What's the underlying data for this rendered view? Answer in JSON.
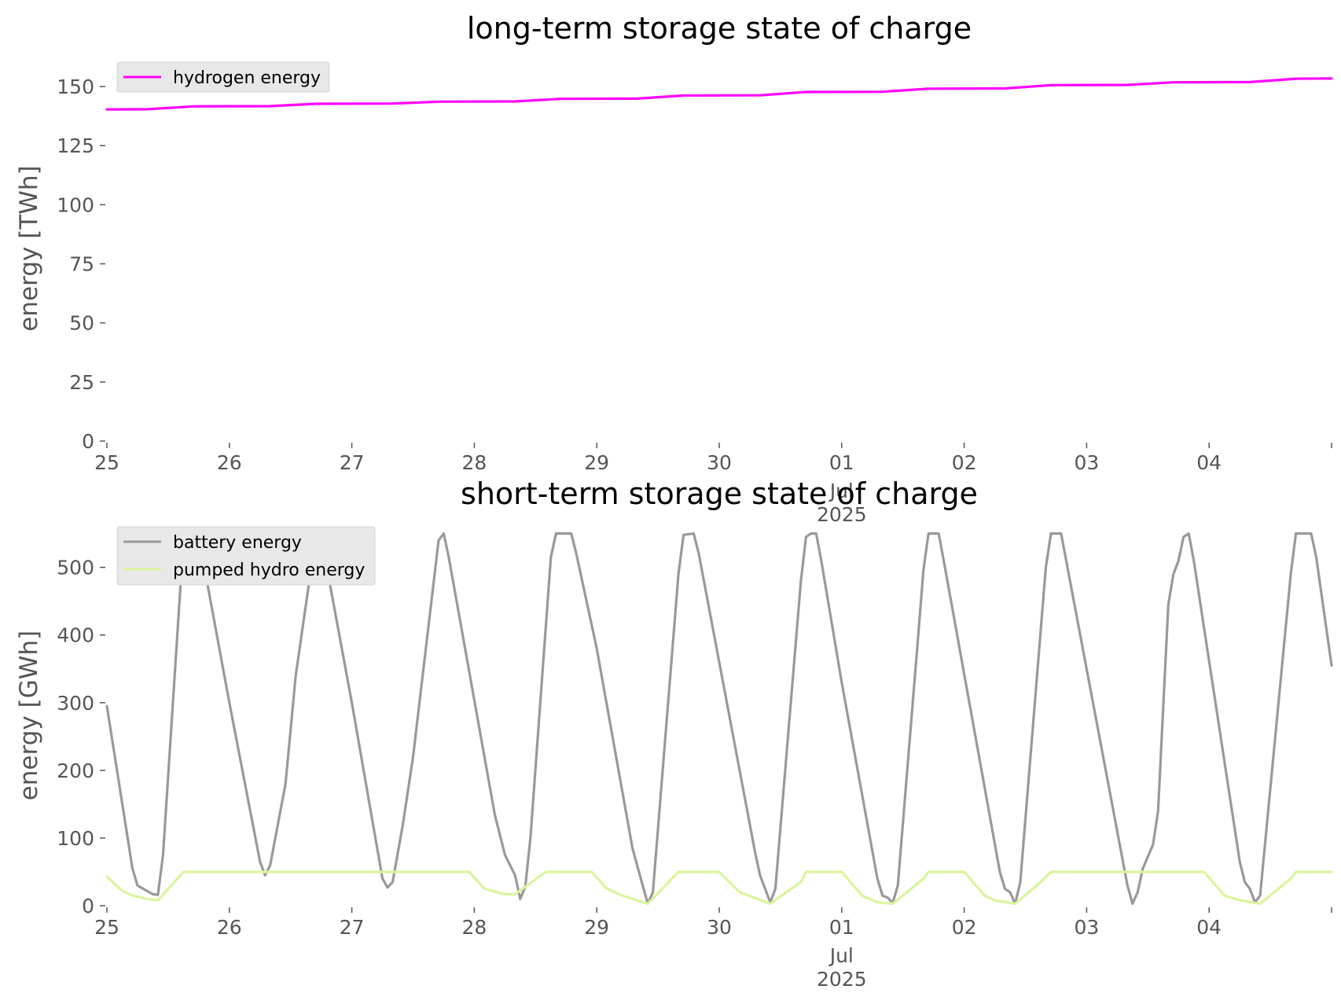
{
  "chart_data": [
    {
      "type": "line",
      "title": "long-term storage state of charge",
      "xlabel": "",
      "ylabel": "energy [TWh]",
      "xlim": [
        "2025-06-25",
        "2025-07-05"
      ],
      "ylim": [
        0,
        160
      ],
      "yticks": [
        0,
        25,
        50,
        75,
        100,
        125,
        150
      ],
      "xtick_labels": [
        {
          "date": "2025-06-25",
          "label": "25"
        },
        {
          "date": "2025-06-26",
          "label": "26"
        },
        {
          "date": "2025-06-27",
          "label": "27"
        },
        {
          "date": "2025-06-28",
          "label": "28"
        },
        {
          "date": "2025-06-29",
          "label": "29"
        },
        {
          "date": "2025-06-30",
          "label": "30"
        },
        {
          "date": "2025-07-01",
          "label": "01"
        },
        {
          "date": "2025-07-02",
          "label": "02"
        },
        {
          "date": "2025-07-03",
          "label": "03"
        },
        {
          "date": "2025-07-04",
          "label": "04"
        }
      ],
      "xtick_sub": {
        "date": "2025-07-01",
        "month": "Jul",
        "year": "2025"
      },
      "grid": false,
      "legend_position": "upper-left",
      "series": [
        {
          "name": "hydrogen energy",
          "color": "#ff00ff",
          "points": [
            [
              "2025-06-25 00:00",
              140.3
            ],
            [
              "2025-06-25 08:00",
              140.4
            ],
            [
              "2025-06-25 17:00",
              141.6
            ],
            [
              "2025-06-26 08:00",
              141.7
            ],
            [
              "2025-06-26 17:00",
              142.7
            ],
            [
              "2025-06-27 08:00",
              142.8
            ],
            [
              "2025-06-27 17:00",
              143.6
            ],
            [
              "2025-06-28 08:00",
              143.7
            ],
            [
              "2025-06-28 17:00",
              144.8
            ],
            [
              "2025-06-29 08:00",
              144.9
            ],
            [
              "2025-06-29 17:00",
              146.2
            ],
            [
              "2025-06-30 08:00",
              146.3
            ],
            [
              "2025-06-30 17:00",
              147.7
            ],
            [
              "2025-07-01 08:00",
              147.8
            ],
            [
              "2025-07-01 17:00",
              149.1
            ],
            [
              "2025-07-02 08:00",
              149.2
            ],
            [
              "2025-07-02 17:00",
              150.6
            ],
            [
              "2025-07-03 08:00",
              150.7
            ],
            [
              "2025-07-03 17:00",
              151.8
            ],
            [
              "2025-07-04 08:00",
              151.9
            ],
            [
              "2025-07-04 17:00",
              153.3
            ],
            [
              "2025-07-05 00:00",
              153.4
            ]
          ]
        }
      ]
    },
    {
      "type": "line",
      "title": "short-term storage state of charge",
      "xlabel": "",
      "ylabel": "energy [GWh]",
      "xlim": [
        "2025-06-25",
        "2025-07-05"
      ],
      "ylim": [
        0,
        560
      ],
      "yticks": [
        0,
        100,
        200,
        300,
        400,
        500
      ],
      "xtick_labels": [
        {
          "date": "2025-06-25",
          "label": "25"
        },
        {
          "date": "2025-06-26",
          "label": "26"
        },
        {
          "date": "2025-06-27",
          "label": "27"
        },
        {
          "date": "2025-06-28",
          "label": "28"
        },
        {
          "date": "2025-06-29",
          "label": "29"
        },
        {
          "date": "2025-06-30",
          "label": "30"
        },
        {
          "date": "2025-07-01",
          "label": "01"
        },
        {
          "date": "2025-07-02",
          "label": "02"
        },
        {
          "date": "2025-07-03",
          "label": "03"
        },
        {
          "date": "2025-07-04",
          "label": "04"
        }
      ],
      "xtick_sub": {
        "date": "2025-07-01",
        "month": "Jul",
        "year": "2025"
      },
      "grid": false,
      "legend_position": "upper-left",
      "series": [
        {
          "name": "battery energy",
          "color": "#999999",
          "points": [
            [
              "2025-06-25 00:00",
              295
            ],
            [
              "2025-06-25 05:00",
              55
            ],
            [
              "2025-06-25 06:00",
              30
            ],
            [
              "2025-06-25 09:00",
              17
            ],
            [
              "2025-06-25 10:00",
              16
            ],
            [
              "2025-06-25 11:00",
              75
            ],
            [
              "2025-06-25 15:00",
              540
            ],
            [
              "2025-06-25 16:00",
              550
            ],
            [
              "2025-06-25 18:00",
              545
            ],
            [
              "2025-06-26 00:00",
              300
            ],
            [
              "2025-06-26 06:00",
              65
            ],
            [
              "2025-06-26 07:00",
              45
            ],
            [
              "2025-06-26 08:00",
              60
            ],
            [
              "2025-06-26 11:00",
              180
            ],
            [
              "2025-06-26 13:00",
              340
            ],
            [
              "2025-06-26 17:00",
              550
            ],
            [
              "2025-06-26 18:00",
              545
            ],
            [
              "2025-06-27 00:00",
              300
            ],
            [
              "2025-06-27 06:00",
              40
            ],
            [
              "2025-06-27 07:00",
              27
            ],
            [
              "2025-06-27 08:00",
              35
            ],
            [
              "2025-06-27 10:00",
              120
            ],
            [
              "2025-06-27 12:00",
              220
            ],
            [
              "2025-06-27 17:00",
              540
            ],
            [
              "2025-06-27 18:00",
              550
            ],
            [
              "2025-06-27 19:00",
              515
            ],
            [
              "2025-06-28 04:00",
              135
            ],
            [
              "2025-06-28 06:00",
              75
            ],
            [
              "2025-06-28 08:00",
              45
            ],
            [
              "2025-06-28 09:00",
              10
            ],
            [
              "2025-06-28 10:00",
              28
            ],
            [
              "2025-06-28 11:00",
              100
            ],
            [
              "2025-06-28 15:00",
              515
            ],
            [
              "2025-06-28 16:00",
              550
            ],
            [
              "2025-06-28 19:00",
              550
            ],
            [
              "2025-06-28 20:00",
              520
            ],
            [
              "2025-06-29 00:00",
              380
            ],
            [
              "2025-06-29 07:00",
              85
            ],
            [
              "2025-06-29 09:00",
              30
            ],
            [
              "2025-06-29 10:00",
              3
            ],
            [
              "2025-06-29 11:00",
              20
            ],
            [
              "2025-06-29 16:00",
              490
            ],
            [
              "2025-06-29 17:00",
              548
            ],
            [
              "2025-06-29 19:00",
              550
            ],
            [
              "2025-06-29 20:00",
              520
            ],
            [
              "2025-06-30 07:00",
              80
            ],
            [
              "2025-06-30 08:00",
              45
            ],
            [
              "2025-06-30 10:00",
              5
            ],
            [
              "2025-06-30 11:00",
              25
            ],
            [
              "2025-06-30 16:00",
              480
            ],
            [
              "2025-06-30 17:00",
              545
            ],
            [
              "2025-06-30 18:00",
              550
            ],
            [
              "2025-06-30 19:00",
              550
            ],
            [
              "2025-06-30 20:00",
              510
            ],
            [
              "2025-07-01 00:00",
              330
            ],
            [
              "2025-07-01 07:00",
              40
            ],
            [
              "2025-07-01 08:00",
              15
            ],
            [
              "2025-07-01 09:00",
              12
            ],
            [
              "2025-07-01 10:00",
              4
            ],
            [
              "2025-07-01 11:00",
              30
            ],
            [
              "2025-07-01 15:00",
              400
            ],
            [
              "2025-07-01 16:00",
              495
            ],
            [
              "2025-07-01 17:00",
              550
            ],
            [
              "2025-07-01 19:00",
              550
            ],
            [
              "2025-07-01 20:00",
              510
            ],
            [
              "2025-07-02 07:00",
              50
            ],
            [
              "2025-07-02 08:00",
              25
            ],
            [
              "2025-07-02 09:00",
              20
            ],
            [
              "2025-07-02 10:00",
              3
            ],
            [
              "2025-07-02 11:00",
              35
            ],
            [
              "2025-07-02 16:00",
              500
            ],
            [
              "2025-07-02 17:00",
              550
            ],
            [
              "2025-07-02 19:00",
              550
            ],
            [
              "2025-07-02 20:00",
              510
            ],
            [
              "2025-07-03 08:00",
              30
            ],
            [
              "2025-07-03 09:00",
              3
            ],
            [
              "2025-07-03 10:00",
              20
            ],
            [
              "2025-07-03 11:00",
              55
            ],
            [
              "2025-07-03 13:00",
              90
            ],
            [
              "2025-07-03 14:00",
              140
            ],
            [
              "2025-07-03 16:00",
              445
            ],
            [
              "2025-07-03 17:00",
              490
            ],
            [
              "2025-07-03 18:00",
              510
            ],
            [
              "2025-07-03 19:00",
              545
            ],
            [
              "2025-07-03 20:00",
              550
            ],
            [
              "2025-07-03 21:00",
              510
            ],
            [
              "2025-07-04 06:00",
              65
            ],
            [
              "2025-07-04 07:00",
              35
            ],
            [
              "2025-07-04 08:00",
              25
            ],
            [
              "2025-07-04 09:00",
              5
            ],
            [
              "2025-07-04 10:00",
              15
            ],
            [
              "2025-07-04 16:00",
              490
            ],
            [
              "2025-07-04 17:00",
              550
            ],
            [
              "2025-07-04 20:00",
              550
            ],
            [
              "2025-07-04 21:00",
              515
            ],
            [
              "2025-07-05 00:00",
              355
            ]
          ]
        },
        {
          "name": "pumped hydro energy",
          "color": "#d9f59c",
          "points": [
            [
              "2025-06-25 00:00",
              43
            ],
            [
              "2025-06-25 03:00",
              22
            ],
            [
              "2025-06-25 05:00",
              15
            ],
            [
              "2025-06-25 08:00",
              10
            ],
            [
              "2025-06-25 10:00",
              8
            ],
            [
              "2025-06-25 15:00",
              50
            ],
            [
              "2025-06-27 23:00",
              50
            ],
            [
              "2025-06-28 02:00",
              25
            ],
            [
              "2025-06-28 06:00",
              17
            ],
            [
              "2025-06-28 08:00",
              17
            ],
            [
              "2025-06-28 14:00",
              50
            ],
            [
              "2025-06-28 23:00",
              50
            ],
            [
              "2025-06-29 02:00",
              25
            ],
            [
              "2025-06-29 05:00",
              15
            ],
            [
              "2025-06-29 10:00",
              3
            ],
            [
              "2025-06-29 16:00",
              50
            ],
            [
              "2025-06-30 00:00",
              50
            ],
            [
              "2025-06-30 04:00",
              20
            ],
            [
              "2025-06-30 10:00",
              3
            ],
            [
              "2025-06-30 16:00",
              35
            ],
            [
              "2025-06-30 17:00",
              50
            ],
            [
              "2025-07-01 00:00",
              50
            ],
            [
              "2025-07-01 04:00",
              15
            ],
            [
              "2025-07-01 07:00",
              5
            ],
            [
              "2025-07-01 10:00",
              3
            ],
            [
              "2025-07-01 16:00",
              40
            ],
            [
              "2025-07-01 17:00",
              50
            ],
            [
              "2025-07-02 00:00",
              50
            ],
            [
              "2025-07-02 04:00",
              15
            ],
            [
              "2025-07-02 06:00",
              8
            ],
            [
              "2025-07-02 10:00",
              3
            ],
            [
              "2025-07-02 15:00",
              35
            ],
            [
              "2025-07-02 17:00",
              50
            ],
            [
              "2025-07-03 23:00",
              50
            ],
            [
              "2025-07-04 03:00",
              15
            ],
            [
              "2025-07-04 06:00",
              8
            ],
            [
              "2025-07-04 10:00",
              3
            ],
            [
              "2025-07-04 16:00",
              40
            ],
            [
              "2025-07-04 17:00",
              50
            ],
            [
              "2025-07-05 00:00",
              50
            ]
          ]
        }
      ]
    }
  ]
}
